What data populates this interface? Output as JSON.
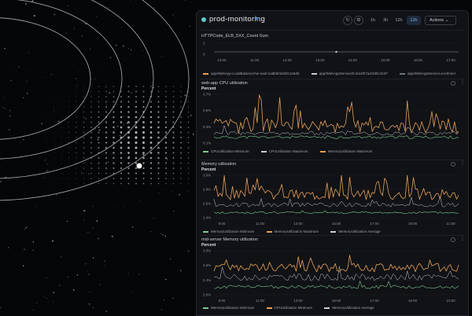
{
  "header": {
    "title": "prod-monitoring",
    "time_ranges": [
      "1h",
      "3h",
      "12h",
      "12h",
      "1d"
    ],
    "selected_range_index": 3,
    "actions_label": "Actions"
  },
  "widgets": [
    {
      "title": "HTTPCode_ELB_5XX_Count  Sum",
      "unit": "",
      "y_labels": [
        "2",
        "0"
      ],
      "x_labels": [
        "10:00",
        "11:00",
        "12:00",
        "13:00",
        "14:00",
        "15:00",
        "16:00",
        "17:00"
      ],
      "legend": [
        {
          "label": "app/WebApp-LoadBalancer/us-east-1a8b6f4d4/8c1e6d5",
          "color": "#e8a059"
        },
        {
          "label": "app/WebAppService/0.0/a4f07a4/4d5c1b37",
          "color": "#c9cdd3"
        },
        {
          "label": "app/WebAppService.a-intmon/",
          "color": "#6d7580"
        }
      ]
    },
    {
      "title": "web-app CPU utilization",
      "unit": "Percent",
      "y_labels": [
        "0.7%",
        "0.5%",
        "0.3%",
        "0.1%"
      ],
      "x_labels": [],
      "legend": [
        {
          "label": "CPUUtilization Minimum",
          "color": "#7fc98f"
        },
        {
          "label": "CPUUtilization Maximum",
          "color": "#c9cdd3"
        },
        {
          "label": "MemoryUtilization Maximum",
          "color": "#e8a059"
        }
      ]
    },
    {
      "title": "Memory utilization",
      "unit": "Percent",
      "y_labels": [
        "3.0%",
        "2.8%",
        "2.6%",
        "2.4%"
      ],
      "x_labels": [
        "9:00",
        "11:00",
        "13:00",
        "15:00",
        "17:00",
        "19:00",
        "21:00"
      ],
      "legend": [
        {
          "label": "MemoryUtilization Minimum",
          "color": "#7fc98f"
        },
        {
          "label": "MemoryUtilization Maximum",
          "color": "#e8a059"
        },
        {
          "label": "MemoryUtilization Average",
          "color": "#c9cdd3"
        }
      ]
    },
    {
      "title": "mid-server Memory utilization",
      "unit": "Percent",
      "y_labels": [
        "3.0%",
        "2.6%",
        "2.4%",
        "2.0%"
      ],
      "x_labels": [
        "9:00",
        "11:00",
        "13:00",
        "15:00",
        "17:00",
        "19:00",
        "21:00"
      ],
      "legend": [
        {
          "label": "MemoryUtilization Minimum",
          "color": "#7fc98f"
        },
        {
          "label": "CPUUtilization Minimum",
          "color": "#e8a059"
        },
        {
          "label": "MemoryUtilization Average",
          "color": "#c9cdd3"
        }
      ]
    }
  ]
}
